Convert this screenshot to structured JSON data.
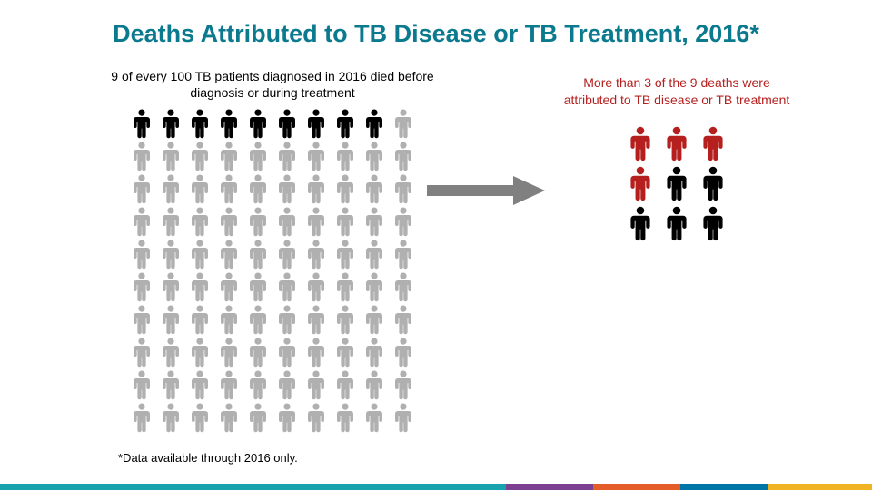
{
  "title": {
    "text": "Deaths Attributed to TB Disease or TB Treatment, 2016*",
    "color": "#0b7a8e",
    "fontsize": 27
  },
  "left": {
    "caption": "9 of every 100 TB patients diagnosed in 2016 died before diagnosis or during treatment",
    "caption_color": "#000000",
    "grid": {
      "cols": 10,
      "rows": 10,
      "total": 100,
      "highlight_count": 9,
      "highlight_color": "#000000",
      "base_color": "#b0b0b0"
    }
  },
  "right": {
    "caption": "More than 3 of the 9 deaths were attributed to TB disease or TB treatment",
    "caption_color": "#b5201f",
    "grid": {
      "cols": 3,
      "rows": 3,
      "total": 9,
      "colors": [
        "#b5201f",
        "#b5201f",
        "#b5201f",
        "#b5201f",
        "#000000",
        "#000000",
        "#000000",
        "#000000",
        "#000000"
      ]
    }
  },
  "arrow": {
    "color": "#808080"
  },
  "footnote": {
    "text": "*Data available through 2016 only.",
    "color": "#000000"
  },
  "footer_bar": {
    "segments": [
      {
        "color": "#19a3ad",
        "width_pct": 58
      },
      {
        "color": "#7d3f8f",
        "width_pct": 10
      },
      {
        "color": "#e45c27",
        "width_pct": 10
      },
      {
        "color": "#0076a8",
        "width_pct": 10
      },
      {
        "color": "#f0b323",
        "width_pct": 12
      }
    ]
  }
}
